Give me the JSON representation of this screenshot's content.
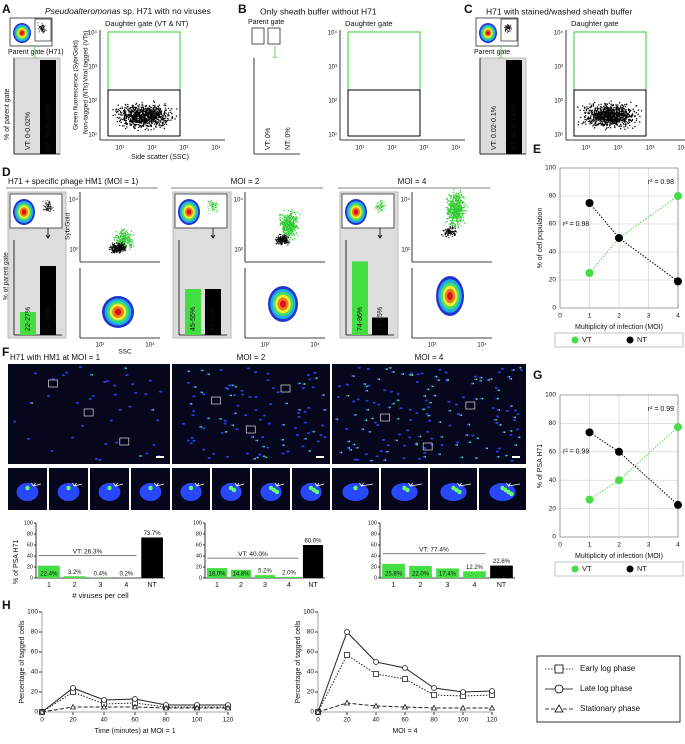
{
  "panel_labels": [
    "A",
    "B",
    "C",
    "D",
    "E",
    "F",
    "G",
    "H"
  ],
  "flow": {
    "tick_labels": [
      "10¹",
      "10²",
      "10³",
      "10⁴"
    ],
    "y_top": "Viral tagged (VTs)",
    "y_bottom": "Non-tagged (NTs)",
    "y_axis": "Green fluorescence (SybrGold)",
    "x_axis": "Side scatter (SSC)",
    "bar_axis": "% of parent gate",
    "bar_ylim": [
      0,
      100
    ],
    "panels": [
      {
        "title_italic": "Pseudoalteromonas",
        "title": " sp. H71 with no viruses",
        "parent": "Parent gate (H71)",
        "daughter": "Daughter gate (VT & NT)",
        "vt": "VT: 0-0.02%",
        "nt": "NT: 99.9-100%",
        "values": [
          0,
          100
        ]
      },
      {
        "title": "Only sheath buffer without H71",
        "parent": "Parent gate",
        "daughter": "Daughter gate",
        "vt": "VT: 0%",
        "nt": "NT: 0%",
        "values": [
          0,
          0
        ]
      },
      {
        "title": "H71 with stained/washed sheath buffer",
        "parent": "Parent gate",
        "daughter": "Daughter gate",
        "vt": "VT: 0.02-0.1%",
        "nt": "NT: 99.9-100%",
        "values": [
          0,
          100
        ]
      }
    ]
  },
  "moi_flow": {
    "y_axis": "SybrGold",
    "x_axis": "SSC",
    "bar_axis": "% of parent gate",
    "tick_labels": [
      "10²",
      "10⁴"
    ],
    "bar_ylim": [
      0,
      100
    ],
    "colors": [
      "#44dd44",
      "#000000"
    ],
    "panels": [
      {
        "title": "H71 + specific phage HM1 (MOI = 1)",
        "values": [
          25,
          75
        ],
        "value_labels": [
          "22-27%",
          "72-78%"
        ]
      },
      {
        "title": "MOI = 2",
        "values": [
          50,
          50
        ],
        "value_labels": [
          "45-55%",
          "45-55%"
        ]
      },
      {
        "title": "MOI = 4",
        "values": [
          80,
          19
        ],
        "value_labels": [
          "74-86%",
          "13-25%"
        ]
      }
    ]
  },
  "microscopy": {
    "roi_labels": [
      "i",
      "ii",
      "iii",
      "iv"
    ],
    "titles": [
      "H71 with HM1 at MOI = 1",
      "MOI = 2",
      "MOI = 4"
    ]
  },
  "chart_data": [
    {
      "type": "line",
      "x": [
        1,
        2,
        4
      ],
      "series": [
        {
          "name": "VT",
          "color": "#44dd44",
          "marker": "circle",
          "dash": "dotted",
          "values": [
            25,
            50,
            80
          ]
        },
        {
          "name": "NT",
          "color": "#000000",
          "marker": "circle",
          "dash": "dotted",
          "values": [
            75,
            50,
            19
          ]
        }
      ],
      "xlim": [
        0,
        4
      ],
      "xticks": [
        0,
        1,
        2,
        3,
        4
      ],
      "ylim": [
        0,
        100
      ],
      "yticks": [
        0,
        20,
        40,
        60,
        80,
        100
      ],
      "ylabel": "% of cell population",
      "xlabel": "Multiplicity of infection (MOI)",
      "annotations": [
        "r² = 0.98",
        "r² = 0.98"
      ],
      "grid": true,
      "legend": "bottom"
    },
    {
      "type": "line",
      "x": [
        1,
        2,
        4
      ],
      "series": [
        {
          "name": "VT",
          "color": "#44dd44",
          "marker": "circle",
          "dash": "dotted",
          "values": [
            26.3,
            40.0,
            77.4
          ]
        },
        {
          "name": "NT",
          "color": "#000000",
          "marker": "circle",
          "dash": "dotted",
          "values": [
            73.7,
            60.0,
            22.6
          ]
        }
      ],
      "xlim": [
        0,
        4
      ],
      "xticks": [
        0,
        1,
        2,
        3,
        4
      ],
      "ylim": [
        0,
        100
      ],
      "yticks": [
        0,
        20,
        40,
        60,
        80,
        100
      ],
      "ylabel": "% of PSA H71",
      "xlabel": "Multiplicity of infection (MOI)",
      "annotations": [
        "r² = 0.99",
        "r² = 0.99"
      ],
      "grid": true,
      "legend": "bottom"
    },
    {
      "type": "bar",
      "categories": [
        "1",
        "2",
        "3",
        "4",
        "NT"
      ],
      "values": [
        22.4,
        3.2,
        0.4,
        0.2,
        73.7
      ],
      "value_labels": [
        "22.4%",
        "3.2%",
        "0.4%",
        "0.2%",
        "73.7%"
      ],
      "colors": [
        "#44dd44",
        "#44dd44",
        "#44dd44",
        "#44dd44",
        "#000000"
      ],
      "annotation": "VT: 26.3%",
      "ylim": [
        0,
        100
      ],
      "yticks": [
        0,
        20,
        40,
        60,
        80,
        100
      ],
      "ylabel": "% of PSA H71",
      "xlabel": "# viruses per cell"
    },
    {
      "type": "bar",
      "categories": [
        "1",
        "2",
        "3",
        "4",
        "NT"
      ],
      "values": [
        18.0,
        14.8,
        5.2,
        2.0,
        60.0
      ],
      "value_labels": [
        "18.0%",
        "14.8%",
        "5.2%",
        "2.0%",
        "60.0%"
      ],
      "colors": [
        "#44dd44",
        "#44dd44",
        "#44dd44",
        "#44dd44",
        "#000000"
      ],
      "annotation": "VT: 40.0%",
      "ylim": [
        0,
        100
      ],
      "yticks": [
        0,
        20,
        40,
        60,
        80,
        100
      ]
    },
    {
      "type": "bar",
      "categories": [
        "1",
        "2",
        "3",
        "4",
        "NT"
      ],
      "values": [
        25.8,
        22.0,
        17.4,
        12.2,
        22.6
      ],
      "value_labels": [
        "25.8%",
        "22.0%",
        "17.4%",
        "12.2%",
        "22.6%"
      ],
      "colors": [
        "#44dd44",
        "#44dd44",
        "#44dd44",
        "#44dd44",
        "#000000"
      ],
      "annotation": "VT: 77.4%",
      "ylim": [
        0,
        100
      ],
      "yticks": [
        0,
        20,
        40,
        60,
        80,
        100
      ]
    },
    {
      "type": "line",
      "x": [
        0,
        20,
        40,
        60,
        80,
        100,
        120
      ],
      "series": [
        {
          "name": "Early log phase",
          "color": "#222222",
          "marker": "square",
          "dash": "dotted",
          "values": [
            0,
            20,
            8,
            9,
            5,
            5,
            5
          ]
        },
        {
          "name": "Late log phase",
          "color": "#222222",
          "marker": "circle",
          "dash": "solid",
          "values": [
            0,
            24,
            12,
            13,
            7,
            7,
            7
          ]
        },
        {
          "name": "Stationary phase",
          "color": "#222222",
          "marker": "triangle",
          "dash": "dashed",
          "values": [
            0,
            5,
            5,
            5,
            4,
            4,
            4
          ]
        }
      ],
      "xlim": [
        0,
        120
      ],
      "xticks": [
        0,
        20,
        40,
        60,
        80,
        100,
        120
      ],
      "ylim": [
        0,
        100
      ],
      "yticks": [
        0,
        20,
        40,
        60,
        80,
        100
      ],
      "ylabel": "Percentage of tagged cells",
      "xlabel": "Time (minutes) at MOI = 1",
      "grid": false
    },
    {
      "type": "line",
      "x": [
        0,
        20,
        40,
        60,
        80,
        100,
        120
      ],
      "series": [
        {
          "name": "Early log phase",
          "color": "#222222",
          "marker": "square",
          "dash": "dotted",
          "values": [
            0,
            57,
            38,
            33,
            17,
            16,
            17
          ]
        },
        {
          "name": "Late log phase",
          "color": "#222222",
          "marker": "circle",
          "dash": "solid",
          "values": [
            0,
            80,
            50,
            44,
            24,
            20,
            21
          ]
        },
        {
          "name": "Stationary phase",
          "color": "#222222",
          "marker": "triangle",
          "dash": "dashed",
          "values": [
            0,
            9,
            6,
            5,
            4,
            4,
            4
          ]
        }
      ],
      "xlim": [
        0,
        120
      ],
      "xticks": [
        0,
        20,
        40,
        60,
        80,
        100,
        120
      ],
      "ylim": [
        0,
        100
      ],
      "yticks": [
        0,
        20,
        40,
        60,
        80,
        100
      ],
      "ylabel": "Percentage of tagged cells",
      "xlabel": "MOI = 4",
      "grid": false,
      "legend": "right"
    }
  ]
}
